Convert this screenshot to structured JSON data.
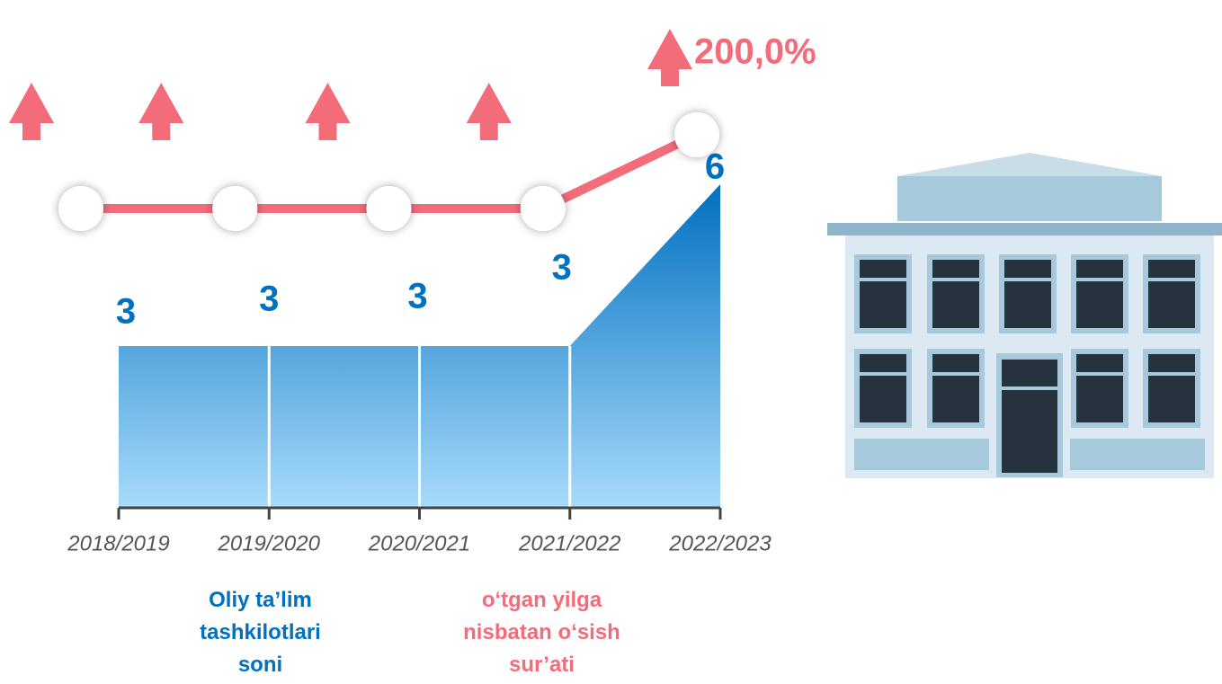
{
  "chart_data": {
    "type": "area",
    "categories": [
      "2018/2019",
      "2019/2020",
      "2020/2021",
      "2021/2022",
      "2022/2023"
    ],
    "series": [
      {
        "name": "Oliy ta’lim tashkilotlari soni",
        "type": "area",
        "color": "#0070c0",
        "values": [
          3,
          3,
          3,
          3,
          6
        ]
      },
      {
        "name": "o‘tgan yilga nisbatan o‘sish sur’ati",
        "type": "line",
        "axis": "y2",
        "color": "#f26c7a",
        "values": [
          100,
          100,
          100,
          100,
          200
        ],
        "value_labels": [
          null,
          null,
          null,
          null,
          "200,0%"
        ]
      }
    ],
    "ylim": [
      0,
      6
    ],
    "y2lim": [
      0,
      200
    ],
    "grid": false
  }
}
